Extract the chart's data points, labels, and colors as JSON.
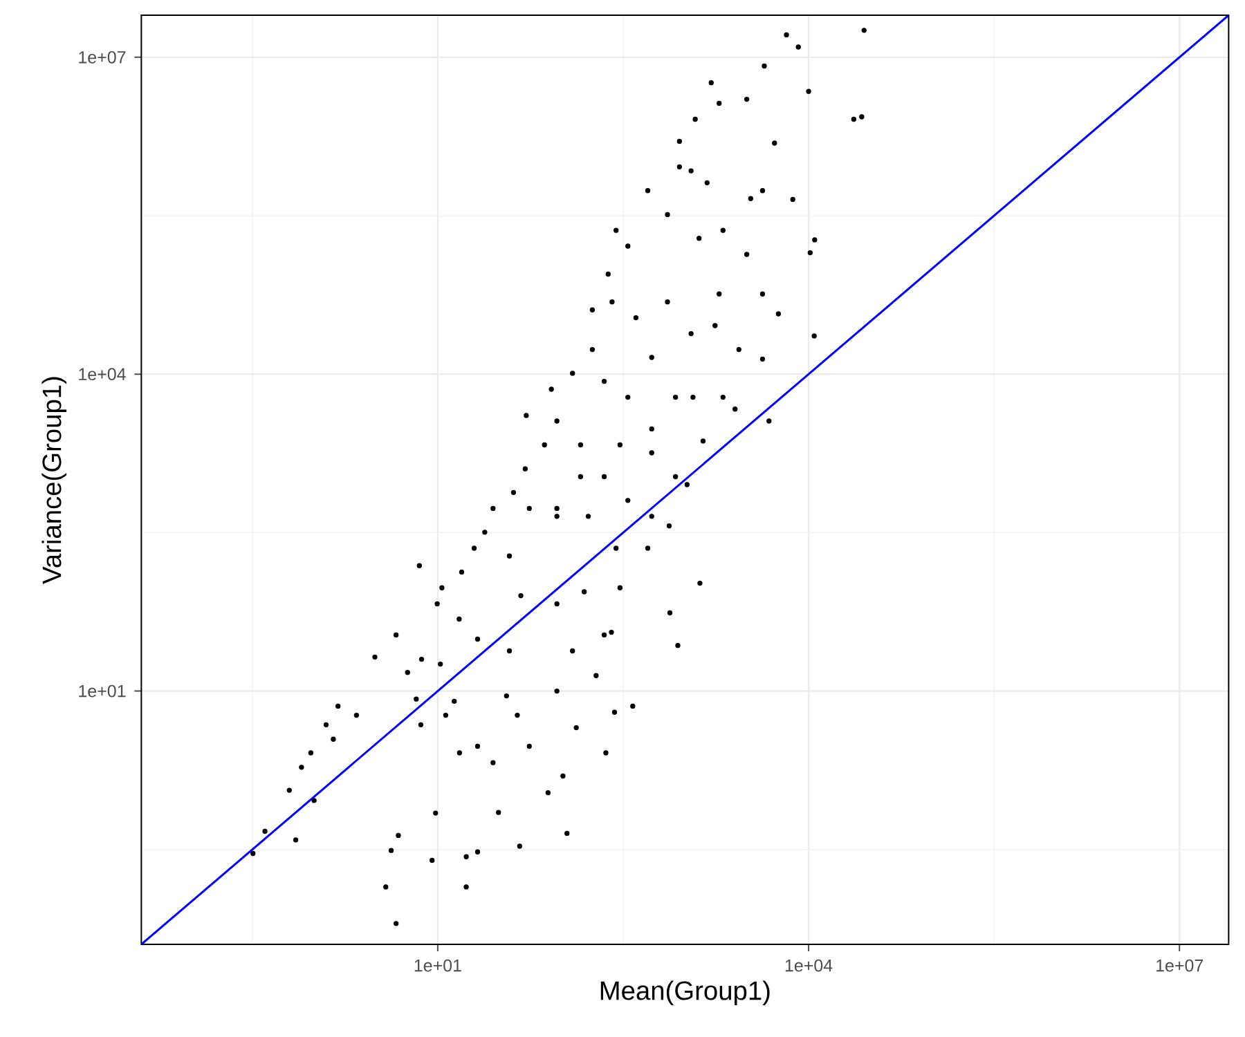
{
  "chart_data": {
    "type": "scatter",
    "xlabel": "Mean(Group1)",
    "ylabel": "Variance(Group1)",
    "log": "xy",
    "grid": true,
    "xlim": [
      0.04,
      25000000.0
    ],
    "ylim": [
      0.04,
      25000000.0
    ],
    "xticks": [
      {
        "value": 0.316,
        "label": null
      },
      {
        "value": 10,
        "label": "1e+01"
      },
      {
        "value": 316,
        "label": null
      },
      {
        "value": 10000,
        "label": "1e+04"
      },
      {
        "value": 316000,
        "label": null
      },
      {
        "value": 10000000.0,
        "label": "1e+07"
      }
    ],
    "yticks": [
      {
        "value": 0.316,
        "label": null
      },
      {
        "value": 10,
        "label": "1e+01"
      },
      {
        "value": 316,
        "label": null
      },
      {
        "value": 10000,
        "label": "1e+04"
      },
      {
        "value": 316000,
        "label": null
      },
      {
        "value": 10000000.0,
        "label": "1e+07"
      }
    ],
    "series": [
      {
        "color": "#000000",
        "x": [
          0.32,
          0.4,
          0.71,
          0.63,
          1.0,
          0.79,
          0.94,
          1.25,
          1.56,
          1.43,
          2.2,
          3.1,
          4.6,
          3.8,
          4.6,
          4.2,
          4.8,
          9.0,
          7.1,
          10.8,
          17,
          17,
          21,
          9.6,
          46,
          111,
          78,
          31,
          229,
          269,
          378,
          875,
          755,
          1320,
          254,
          132,
          103,
          55,
          28,
          15,
          36,
          13.6,
          7.3,
          6.7,
          10.5,
          7.4,
          5.7,
          9.9,
          15.6,
          14.9,
          21,
          19.7,
          28,
          24,
          38,
          47,
          92,
          153,
          222,
          277,
          41,
          51,
          55,
          92,
          165,
          73,
          92,
          143,
          222,
          345,
          538,
          745,
          52,
          83,
          123,
          178,
          222,
          345,
          538,
          838,
          1040,
          1400,
          1160,
          2030,
          2540,
          4780,
          4240,
          11100,
          5700,
          10300,
          11200,
          4240,
          2730,
          1750,
          1120,
          722,
          401,
          257,
          178,
          239,
          345,
          277,
          500,
          722,
          902,
          1300,
          1890,
          2030,
          1510,
          1120,
          902,
          1210,
          1890,
          1630,
          3160,
          4380,
          6620,
          8260,
          28100,
          10000,
          23200,
          26900,
          5300,
          4240,
          7450,
          3400,
          3160,
          92,
          44,
          21,
          11.6,
          123,
          191,
          38,
          500,
          298,
          538,
          838,
          298,
          143,
          538,
          92
        ],
        "values": [
          0.29,
          0.47,
          0.39,
          1.15,
          0.92,
          1.9,
          2.6,
          4.8,
          7.2,
          3.5,
          5.9,
          21,
          34,
          0.14,
          0.063,
          0.31,
          0.43,
          0.25,
          154,
          95,
          0.14,
          0.27,
          0.3,
          0.7,
          0.34,
          0.45,
          1.09,
          0.71,
          2.6,
          6.3,
          7.2,
          27,
          55,
          105,
          36,
          4.5,
          1.57,
          3.0,
          2.1,
          2.6,
          9.0,
          8.0,
          4.8,
          8.4,
          18,
          20,
          15,
          67,
          134,
          48,
          31,
          225,
          536,
          319,
          190,
          80,
          67,
          87,
          34,
          225,
          759,
          1270,
          536,
          536,
          451,
          2140,
          3600,
          2140,
          1070,
          638,
          451,
          366,
          4060,
          7200,
          10200,
          17100,
          8550,
          6050,
          3030,
          1070,
          900,
          2330,
          6050,
          6050,
          4670,
          3600,
          13900,
          23000,
          37200,
          141000,
          187000,
          57400,
          17100,
          28800,
          24200,
          48300,
          34200,
          48300,
          40600,
          88500,
          163000,
          230000,
          546000,
          324000,
          917000,
          193000,
          57400,
          230000,
          649000,
          841000,
          1600000.0,
          2590000.0,
          3660000.0,
          5740000.0,
          4000000.0,
          8260000.0,
          16300000.0,
          12500000.0,
          18000000.0,
          4750000.0,
          2590000.0,
          2730000.0,
          1540000.0,
          546000,
          451000,
          459000,
          136000,
          10,
          5.9,
          3.0,
          5.9,
          24,
          14,
          24,
          225,
          95,
          1800,
          6050,
          2140,
          1070,
          14400,
          451
        ]
      },
      {
        "type": "line",
        "color": "#0000ff",
        "x": [
          0.04,
          25000000.0
        ],
        "values": [
          0.04,
          25000000.0
        ]
      }
    ]
  }
}
